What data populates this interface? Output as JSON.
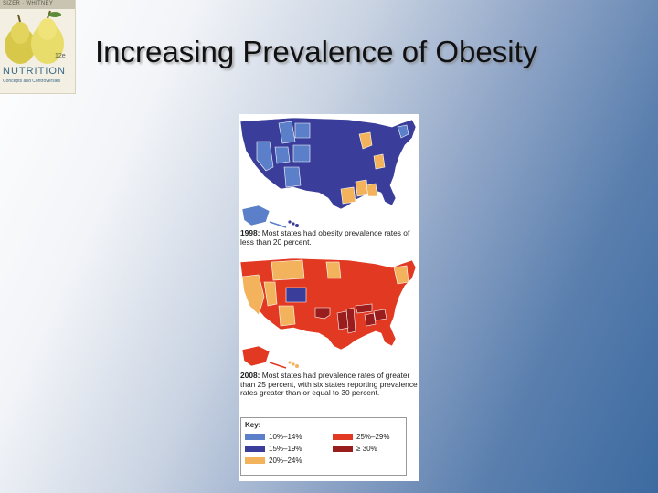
{
  "logo": {
    "authors": "SIZER · WHITNEY",
    "edition": "12e",
    "title": "NUTRITION",
    "subtitle": "Concepts and Controversies"
  },
  "slide": {
    "title": "Increasing Prevalence of Obesity"
  },
  "figure": {
    "caption_1998_year": "1998:",
    "caption_1998_text": "Most states had obesity prevalence rates of less than 20 percent.",
    "caption_2008_year": "2008:",
    "caption_2008_text": "Most states had prevalence rates of greater than 25 percent, with six states reporting prevalence rates greater than or equal to 30 percent.",
    "key": {
      "title": "Key:",
      "items": [
        {
          "label": "10%–14%",
          "color": "#5b7fc9"
        },
        {
          "label": "15%–19%",
          "color": "#3a3d9a"
        },
        {
          "label": "20%–24%",
          "color": "#f2b35c"
        },
        {
          "label": "25%–29%",
          "color": "#e23a22"
        },
        {
          "label": "≥ 30%",
          "color": "#9a1d1d"
        }
      ]
    }
  },
  "colors": {
    "light_blue": "#5b7fc9",
    "dark_blue": "#3a3d9a",
    "orange": "#f2b35c",
    "red": "#e23a22",
    "dark_red": "#9a1d1d"
  }
}
